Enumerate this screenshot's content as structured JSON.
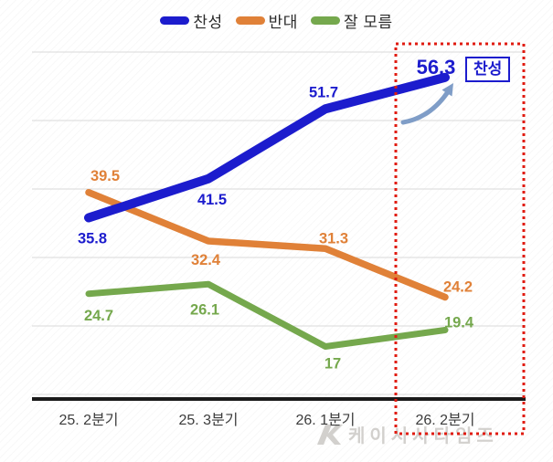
{
  "chart_data": {
    "type": "line",
    "title": "",
    "categories": [
      "25. 2분기",
      "25. 3분기",
      "26. 1분기",
      "26. 2분기"
    ],
    "series": [
      {
        "name": "찬성",
        "color": "#1c1ccd",
        "values": [
          35.8,
          41.5,
          51.7,
          56.3
        ]
      },
      {
        "name": "반대",
        "color": "#e08138",
        "values": [
          39.5,
          32.4,
          31.3,
          24.2
        ]
      },
      {
        "name": "잘 모름",
        "color": "#75a84d",
        "values": [
          24.7,
          26.1,
          17,
          19.4
        ]
      }
    ],
    "ylim": [
      9,
      61
    ],
    "gridlines": [
      10,
      20,
      30,
      40,
      50,
      60
    ],
    "grid": true,
    "legend_position": "top",
    "highlight": {
      "category": "26. 2분기",
      "series": "찬성",
      "value": 56.3,
      "annotation": "찬성"
    }
  },
  "colors": {
    "approve": "#1c1ccd",
    "oppose": "#e08138",
    "unsure": "#75a84d",
    "highlight_box": "#e01b10",
    "arrow": "#7f9dc7",
    "gridline": "#d9d9d9",
    "axis": "#1a1a1a",
    "x_label": "#3c3c3c",
    "watermark": "#d2d0cd"
  },
  "watermark": {
    "text": "케이시사타임즈"
  }
}
